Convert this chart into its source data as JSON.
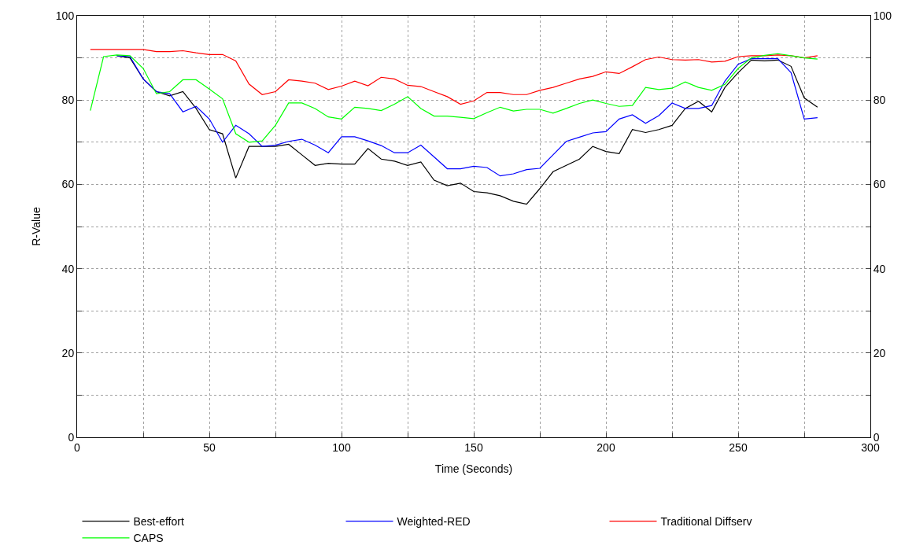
{
  "chart_data": {
    "type": "line",
    "xlabel": "Time (Seconds)",
    "ylabel": "R-Value",
    "x": [
      5,
      10,
      15,
      20,
      25,
      30,
      35,
      40,
      45,
      50,
      55,
      60,
      65,
      70,
      75,
      80,
      85,
      90,
      95,
      100,
      105,
      110,
      115,
      120,
      125,
      130,
      135,
      140,
      145,
      150,
      155,
      160,
      165,
      170,
      175,
      180,
      185,
      190,
      195,
      200,
      205,
      210,
      215,
      220,
      225,
      230,
      235,
      240,
      245,
      250,
      255,
      260,
      265,
      270,
      275,
      280
    ],
    "series": [
      {
        "name": "Best-effort",
        "color": "#000000",
        "x": [
          15,
          20,
          25,
          30,
          35,
          40,
          45,
          50,
          55,
          60,
          65,
          70,
          75,
          80,
          85,
          90,
          95,
          100,
          105,
          110,
          115,
          120,
          125,
          130,
          135,
          140,
          145,
          150,
          155,
          160,
          165,
          170,
          175,
          180,
          185,
          190,
          195,
          200,
          205,
          210,
          215,
          220,
          225,
          230,
          235,
          240,
          245,
          250,
          255,
          260,
          265,
          270,
          275,
          280
        ],
        "values": [
          90.5,
          90,
          85,
          82,
          81,
          82,
          78,
          73,
          72,
          61.5,
          69,
          69,
          69,
          69.5,
          67,
          64.5,
          65,
          64.8,
          64.8,
          68.5,
          66,
          65.5,
          64.5,
          65.3,
          61,
          59.7,
          60.3,
          58.3,
          58,
          57.3,
          56,
          55.3,
          59,
          63,
          64.5,
          66,
          69,
          67.8,
          67.3,
          73,
          72.3,
          73,
          74,
          78,
          79.7,
          77.2,
          83,
          86.5,
          89.5,
          89.3,
          89.5,
          88,
          80.5,
          78.3
        ]
      },
      {
        "name": "Weighted-RED",
        "color": "#0000ff",
        "x": [
          15,
          20,
          25,
          30,
          35,
          40,
          45,
          50,
          55,
          60,
          65,
          70,
          75,
          80,
          85,
          90,
          95,
          100,
          105,
          110,
          115,
          120,
          125,
          130,
          135,
          140,
          145,
          150,
          155,
          160,
          165,
          170,
          175,
          180,
          185,
          190,
          195,
          200,
          205,
          210,
          215,
          220,
          225,
          230,
          235,
          240,
          245,
          250,
          255,
          260,
          265,
          270,
          275,
          280
        ],
        "values": [
          90.5,
          90.3,
          85,
          82,
          81.5,
          77.2,
          78.5,
          75.5,
          70,
          74,
          72,
          69,
          69.3,
          70.2,
          70.7,
          69.3,
          67.5,
          71.3,
          71.3,
          70.3,
          69.2,
          67.5,
          67.5,
          69.3,
          66.5,
          63.7,
          63.7,
          64.3,
          64,
          62,
          62.5,
          63.5,
          63.8,
          67,
          70.2,
          71.2,
          72.2,
          72.5,
          75.5,
          76.5,
          74.5,
          76.3,
          79.3,
          78,
          78,
          78.7,
          84.5,
          88.5,
          89.8,
          89.8,
          89.8,
          86.5,
          75.5,
          75.8
        ]
      },
      {
        "name": "Traditional Diffserv",
        "color": "#ff0000",
        "values": [
          92,
          92,
          92,
          92,
          92,
          91.5,
          91.5,
          91.7,
          91.2,
          90.8,
          90.8,
          89.3,
          83.8,
          81.3,
          82,
          84.8,
          84.5,
          84,
          82.5,
          83.3,
          84.5,
          83.4,
          85.4,
          85,
          83.5,
          83.2,
          82,
          80.8,
          79,
          79.8,
          81.8,
          81.8,
          81.3,
          81.3,
          82.3,
          83,
          84,
          85,
          85.6,
          86.7,
          86.3,
          87.9,
          89.6,
          90.2,
          89.6,
          89.5,
          89.6,
          89,
          89.2,
          90.3,
          90.5,
          90.5,
          90.7,
          90.5,
          90,
          90.5
        ]
      },
      {
        "name": "CAPS",
        "color": "#00ff00",
        "values": [
          77.5,
          90.3,
          90.7,
          90.5,
          87.5,
          81.5,
          82,
          84.8,
          84.8,
          82.6,
          80.3,
          72,
          70,
          70.3,
          74,
          79.3,
          79.3,
          78,
          76,
          75.5,
          78.3,
          78,
          77.5,
          79,
          80.8,
          78,
          76.2,
          76.2,
          75.9,
          75.6,
          77,
          78.3,
          77.4,
          77.8,
          77.8,
          76.9,
          78,
          79.2,
          80,
          79.2,
          78.5,
          78.7,
          83,
          82.5,
          82.8,
          84.3,
          83,
          82.3,
          83.7,
          87.5,
          90,
          90.6,
          91,
          90.5,
          90,
          89.7
        ]
      }
    ],
    "xlim": [
      0,
      300
    ],
    "xticks": [
      0,
      {
        "value": 25,
        "label": null
      },
      50,
      {
        "value": 75,
        "label": null
      },
      100,
      {
        "value": 125,
        "label": null
      },
      150,
      {
        "value": 175,
        "label": null
      },
      200,
      {
        "value": 225,
        "label": null
      },
      250,
      {
        "value": 275,
        "label": null
      },
      300
    ],
    "ylim": [
      0,
      100
    ],
    "yticks": [
      0,
      {
        "value": 10,
        "label": null
      },
      20,
      {
        "value": 30,
        "label": null
      },
      40,
      {
        "value": 50,
        "label": null
      },
      60,
      {
        "value": 70,
        "label": null
      },
      80,
      {
        "value": 90,
        "label": null
      },
      100
    ],
    "y2lim": [
      0,
      100
    ],
    "y2ticks": [
      0,
      {
        "value": 10,
        "label": null
      },
      20,
      {
        "value": 30,
        "label": null
      },
      40,
      {
        "value": 50,
        "label": null
      },
      60,
      {
        "value": 70,
        "label": null
      },
      80,
      {
        "value": 90,
        "label": null
      },
      100
    ],
    "grid": true,
    "legend": "bottom",
    "marker": "none",
    "line_style": "solid"
  }
}
